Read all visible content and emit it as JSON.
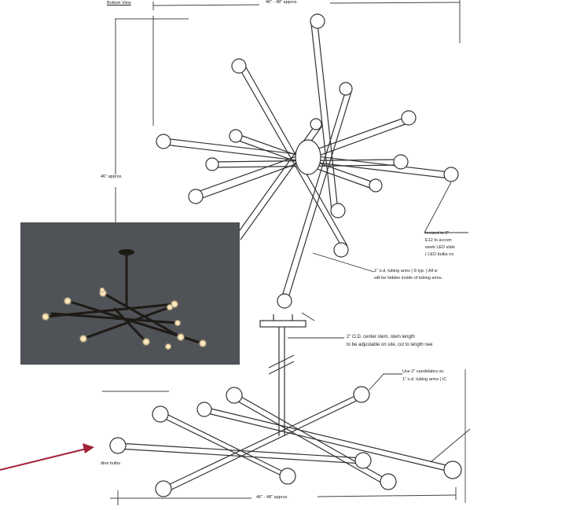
{
  "header": {
    "view_label": "Bottom View",
    "top_width_dim": "46\" - 48\" approx."
  },
  "dimensions": {
    "height_dim": "46\" approx.",
    "bottom_width_dim": "46\" - 48\" approx."
  },
  "notes": {
    "revised_line1": "revised to 2\"",
    "revised_line2": "E12 to accom",
    "revised_line3": "week LED slide",
    "revised_line4": "( LED bulbs no",
    "tubing_line1": "1\" o.d. tubing arms ( 8 typ. )  All w",
    "tubing_line2": "will be hidden inside of tubing arms.",
    "stem_line1": "2\" O.D. center stem, stem length",
    "stem_line2": "to be adjustable on site, cut to length nee",
    "candelabra_line1": "Use 2\" candelabra so",
    "candelabra_line2": "1\" o.d. tubing arms ( IC",
    "bulbs_label": "dine bulbs"
  },
  "colors": {
    "ink": "#3a3a3a",
    "photo_bg": "#4f5256",
    "photo_rod": "#1e1a16",
    "bulb_glow": "#f3d9a4",
    "arrow": "#a3213a"
  }
}
